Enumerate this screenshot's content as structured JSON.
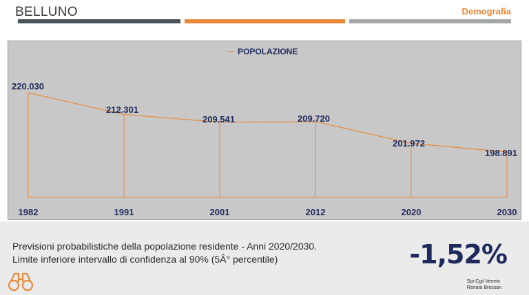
{
  "header": {
    "title": "BELLUNO",
    "section": "Demografia"
  },
  "chart_data": {
    "type": "line",
    "categories": [
      "1982",
      "1991",
      "2001",
      "2012",
      "2020",
      "2030"
    ],
    "series": [
      {
        "name": "POPOLAZIONE",
        "values": [
          220030,
          212301,
          209541,
          209720,
          201972,
          198891
        ]
      }
    ],
    "data_labels": [
      "220.030",
      "212.301",
      "209.541",
      "209.720",
      "201.972",
      "198.891"
    ],
    "legend": "top-center",
    "grid": false,
    "colors": {
      "line": "#e8893a",
      "labels": "#1f2a5c",
      "background": "#c8c8c8"
    }
  },
  "footer": {
    "caption_line1": "Previsioni probabilistiche della popolazione residente - Anni 2020/2030.",
    "caption_line2": "Limite inferiore intervallo di confidenza al 90% (5Â° percentile)",
    "change": "-1,52%",
    "credit_line1": "Spi-Cgil Veneto",
    "credit_line2": "Renato Bressan"
  }
}
